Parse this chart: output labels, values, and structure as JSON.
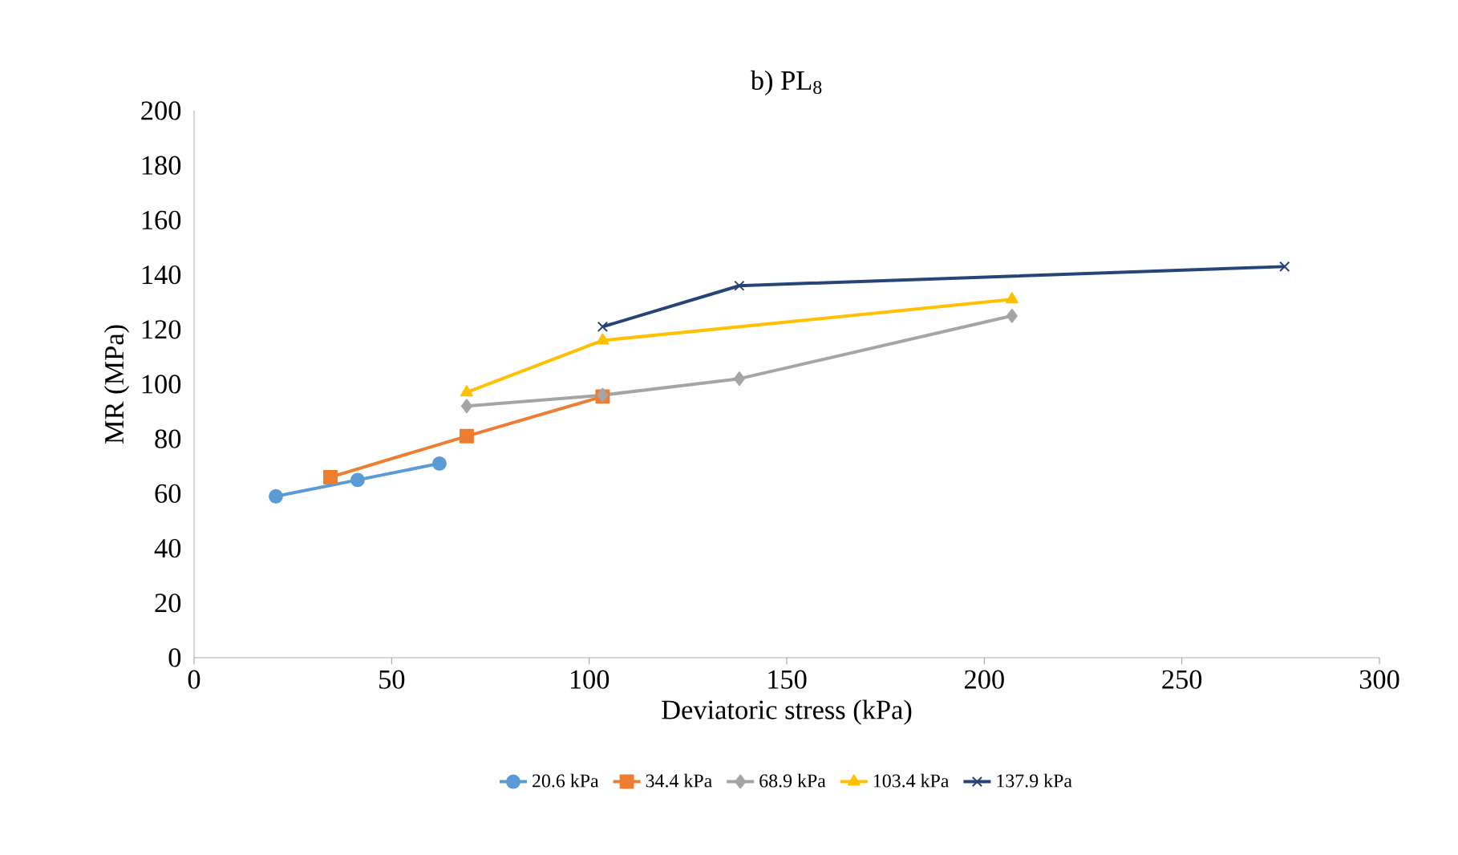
{
  "chart_data": {
    "type": "line",
    "title": "b) PL$_{8}$",
    "xlabel": "Deviatoric stress (kPa)",
    "ylabel": "MR (MPa)",
    "xlim": [
      0,
      300
    ],
    "xticks": [
      0,
      50,
      100,
      150,
      200,
      250,
      300
    ],
    "ylim": [
      0,
      200
    ],
    "yticks": [
      0,
      20,
      40,
      60,
      80,
      100,
      120,
      140,
      160,
      180,
      200
    ],
    "grid": false,
    "legend": "bottom",
    "line_style": "solid",
    "series": [
      {
        "name": "20.6 kPa",
        "color": "#5b9bd5",
        "marker": "circle",
        "x": [
          20.7,
          41.4,
          62.1
        ],
        "values": [
          59,
          65,
          71
        ]
      },
      {
        "name": "34.4 kPa",
        "color": "#ed7d31",
        "marker": "square",
        "x": [
          34.5,
          69,
          103.4
        ],
        "values": [
          66,
          81,
          95.5
        ]
      },
      {
        "name": "68.9 kPa",
        "color": "#a5a5a5",
        "marker": "diamond",
        "x": [
          69,
          103.4,
          138,
          207
        ],
        "values": [
          92,
          96,
          102,
          125
        ]
      },
      {
        "name": "103.4 kPa",
        "color": "#ffc000",
        "marker": "triangle",
        "x": [
          69,
          103.4,
          207
        ],
        "values": [
          97,
          116,
          131
        ]
      },
      {
        "name": "137.9 kPa",
        "color": "#264478",
        "marker": "cross",
        "x": [
          103.4,
          138,
          276
        ],
        "values": [
          121,
          136,
          143
        ]
      }
    ]
  }
}
